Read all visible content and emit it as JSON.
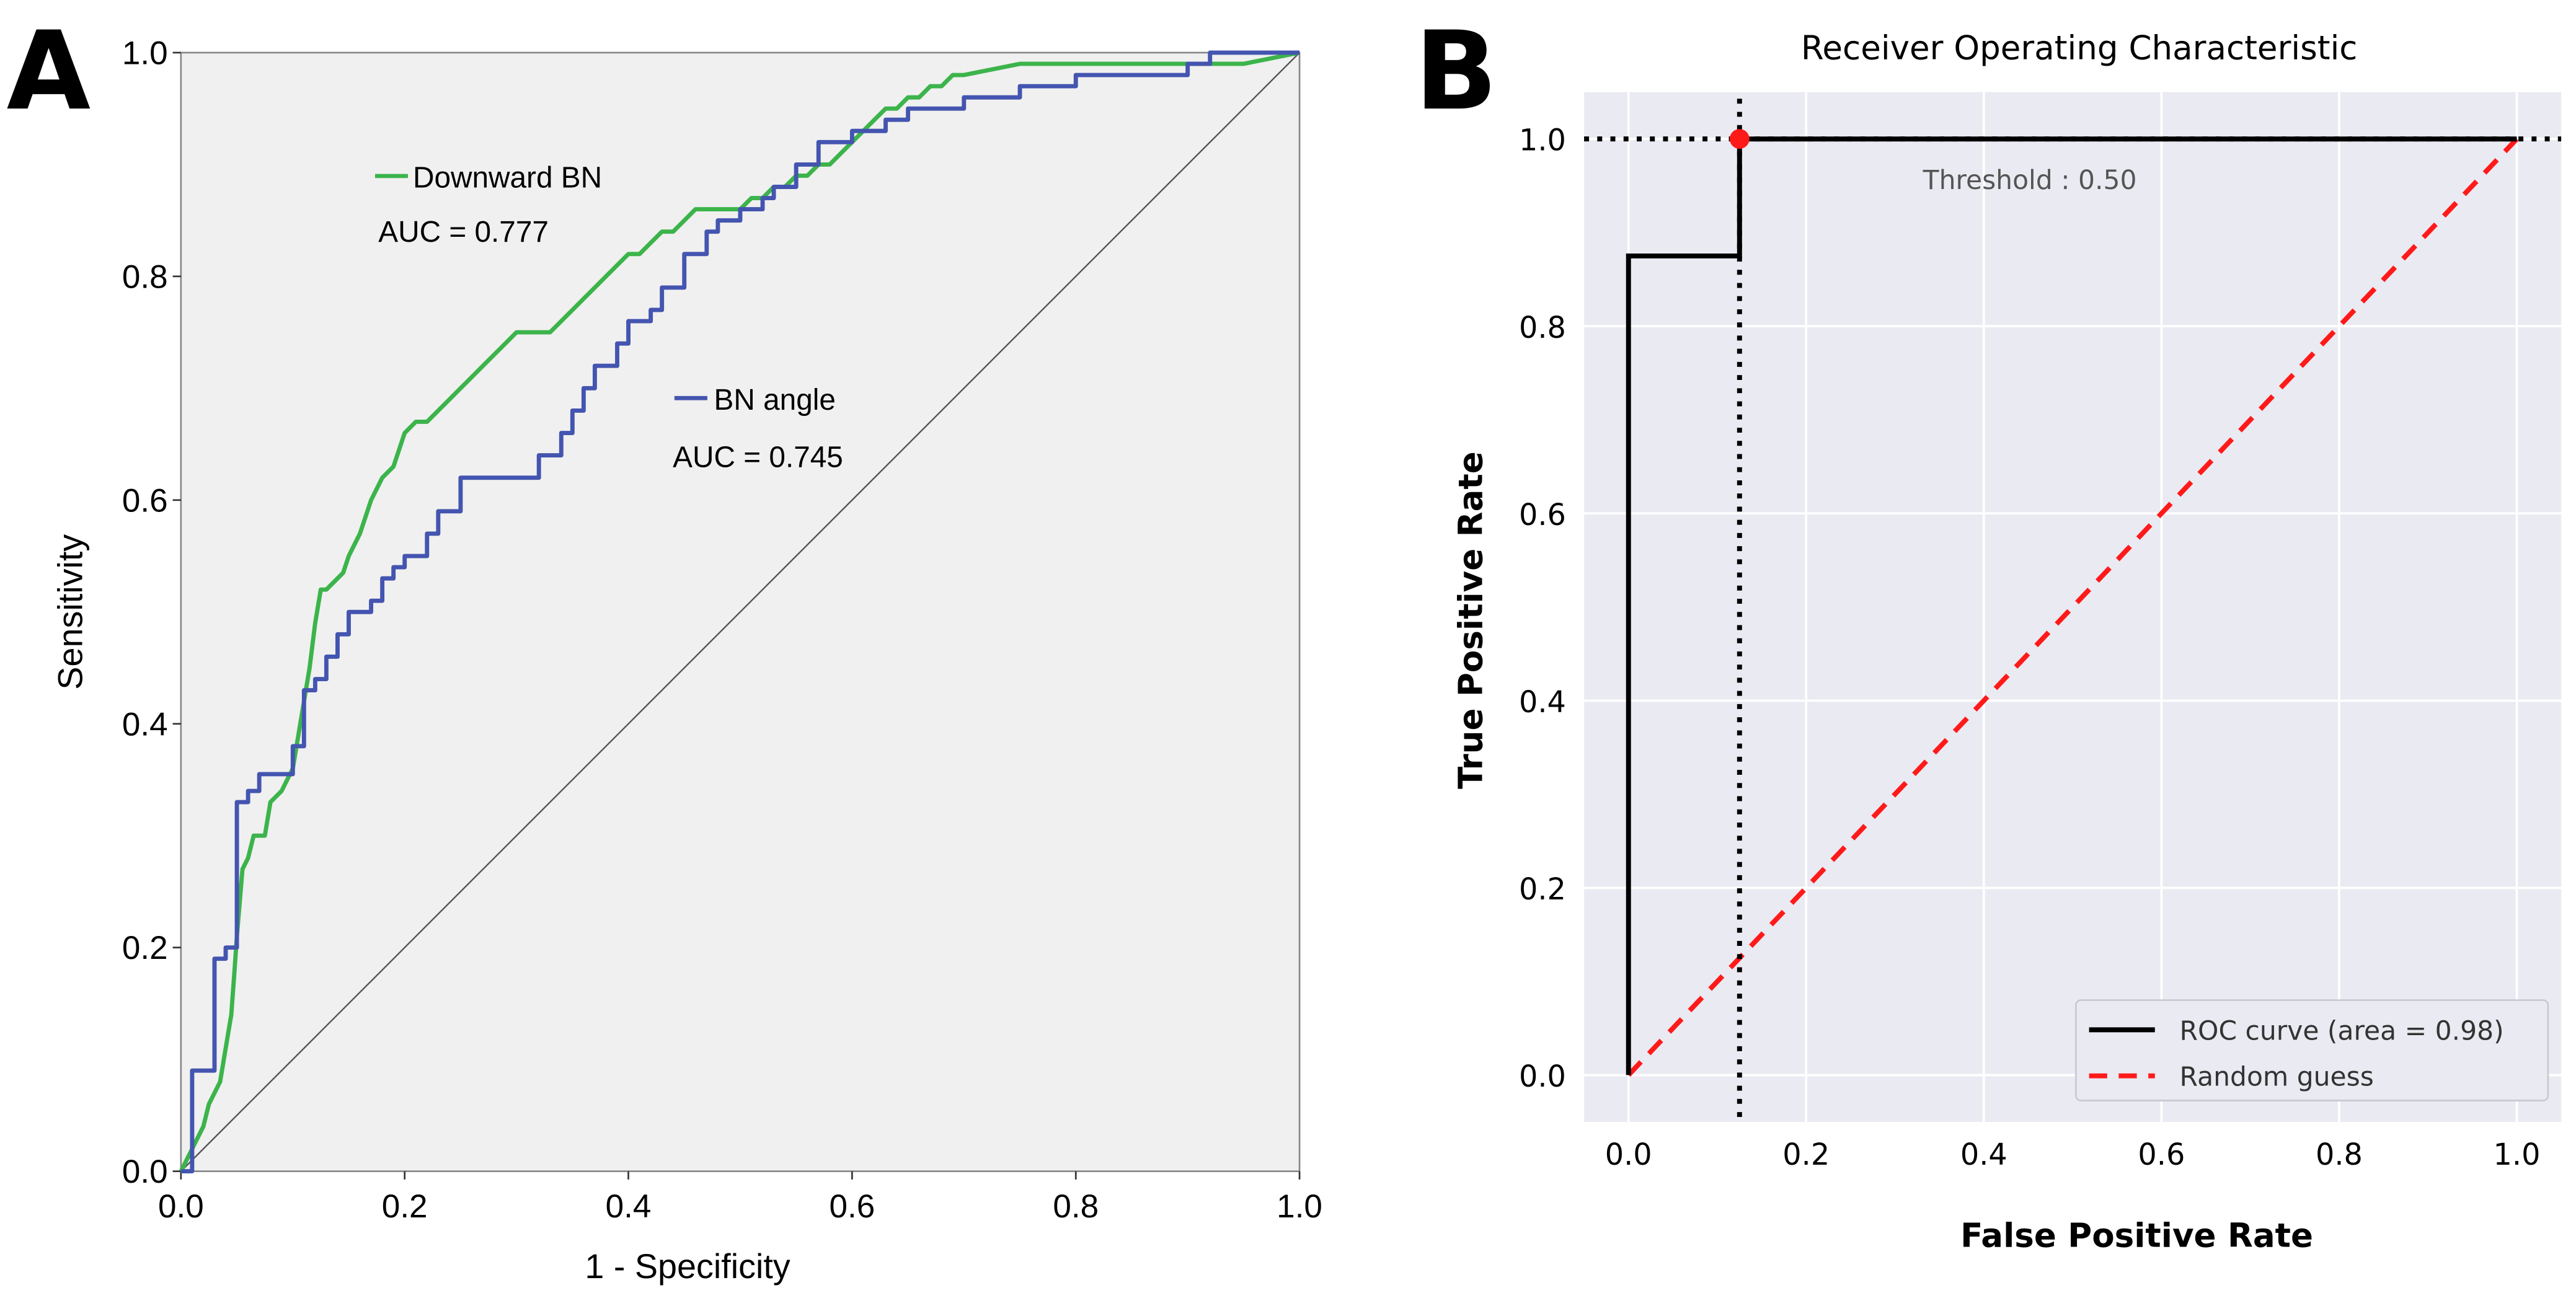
{
  "panels": {
    "a_label": "A",
    "b_label": "B"
  },
  "colors": {
    "downward": "#3cb44b",
    "bn_angle": "#4455b0",
    "roc": "#000000",
    "random": "#ff1a1a",
    "point": "#ff1a1a",
    "plot_bg_a": "#f0f0f0",
    "plot_bg_b": "#eaeaf2"
  },
  "chart_data": [
    {
      "type": "line",
      "panel": "A",
      "xlabel": "1 - Specificity",
      "ylabel": "Sensitivity",
      "xlim": [
        0,
        1
      ],
      "ylim": [
        0,
        1
      ],
      "ticks": [
        "0.0",
        "0.2",
        "0.4",
        "0.6",
        "0.8",
        "1.0"
      ],
      "grid": false,
      "reference_line": true,
      "series": [
        {
          "name": "Downward BN",
          "auc_text": "AUC = 0.777",
          "color": "#3cb44b",
          "step": false,
          "x": [
            0,
            0.01,
            0.02,
            0.025,
            0.035,
            0.04,
            0.045,
            0.048,
            0.05,
            0.055,
            0.06,
            0.065,
            0.075,
            0.08,
            0.09,
            0.1,
            0.105,
            0.11,
            0.115,
            0.12,
            0.125,
            0.13,
            0.14,
            0.145,
            0.15,
            0.16,
            0.17,
            0.18,
            0.19,
            0.2,
            0.21,
            0.22,
            0.23,
            0.24,
            0.25,
            0.26,
            0.27,
            0.28,
            0.29,
            0.3,
            0.31,
            0.32,
            0.33,
            0.34,
            0.35,
            0.36,
            0.37,
            0.38,
            0.39,
            0.4,
            0.41,
            0.42,
            0.43,
            0.44,
            0.45,
            0.46,
            0.47,
            0.48,
            0.49,
            0.5,
            0.51,
            0.52,
            0.53,
            0.54,
            0.55,
            0.56,
            0.57,
            0.58,
            0.59,
            0.6,
            0.61,
            0.62,
            0.63,
            0.64,
            0.65,
            0.66,
            0.67,
            0.68,
            0.69,
            0.7,
            0.75,
            0.8,
            0.85,
            0.9,
            0.95,
            1.0
          ],
          "y": [
            0,
            0.02,
            0.04,
            0.06,
            0.08,
            0.11,
            0.14,
            0.18,
            0.21,
            0.27,
            0.28,
            0.3,
            0.3,
            0.33,
            0.34,
            0.36,
            0.39,
            0.42,
            0.45,
            0.49,
            0.52,
            0.52,
            0.53,
            0.535,
            0.55,
            0.57,
            0.6,
            0.62,
            0.63,
            0.66,
            0.67,
            0.67,
            0.68,
            0.69,
            0.7,
            0.71,
            0.72,
            0.73,
            0.74,
            0.75,
            0.75,
            0.75,
            0.75,
            0.76,
            0.77,
            0.78,
            0.79,
            0.8,
            0.81,
            0.82,
            0.82,
            0.83,
            0.84,
            0.84,
            0.85,
            0.86,
            0.86,
            0.86,
            0.86,
            0.86,
            0.87,
            0.87,
            0.88,
            0.88,
            0.89,
            0.89,
            0.9,
            0.9,
            0.91,
            0.92,
            0.93,
            0.94,
            0.95,
            0.95,
            0.96,
            0.96,
            0.97,
            0.97,
            0.98,
            0.98,
            0.99,
            0.99,
            0.99,
            0.99,
            0.99,
            1.0
          ]
        },
        {
          "name": "BN angle",
          "auc_text": "AUC = 0.745",
          "color": "#4455b0",
          "step": true,
          "x": [
            0,
            0.01,
            0.01,
            0.03,
            0.03,
            0.04,
            0.04,
            0.05,
            0.05,
            0.06,
            0.06,
            0.07,
            0.07,
            0.08,
            0.08,
            0.1,
            0.1,
            0.11,
            0.11,
            0.12,
            0.12,
            0.13,
            0.13,
            0.14,
            0.14,
            0.15,
            0.15,
            0.17,
            0.17,
            0.18,
            0.18,
            0.19,
            0.19,
            0.2,
            0.2,
            0.22,
            0.22,
            0.23,
            0.23,
            0.25,
            0.25,
            0.28,
            0.28,
            0.32,
            0.32,
            0.34,
            0.34,
            0.35,
            0.35,
            0.36,
            0.36,
            0.37,
            0.37,
            0.39,
            0.39,
            0.4,
            0.4,
            0.42,
            0.42,
            0.43,
            0.43,
            0.45,
            0.45,
            0.47,
            0.47,
            0.48,
            0.48,
            0.5,
            0.5,
            0.52,
            0.52,
            0.53,
            0.53,
            0.55,
            0.55,
            0.57,
            0.57,
            0.6,
            0.6,
            0.63,
            0.63,
            0.65,
            0.65,
            0.7,
            0.7,
            0.75,
            0.75,
            0.8,
            0.8,
            0.9,
            0.9,
            0.92,
            0.92,
            1.0
          ],
          "y": [
            0,
            0,
            0.09,
            0.09,
            0.19,
            0.19,
            0.2,
            0.2,
            0.33,
            0.33,
            0.34,
            0.34,
            0.355,
            0.355,
            0.355,
            0.355,
            0.38,
            0.38,
            0.43,
            0.43,
            0.44,
            0.44,
            0.46,
            0.46,
            0.48,
            0.48,
            0.5,
            0.5,
            0.51,
            0.51,
            0.53,
            0.53,
            0.54,
            0.54,
            0.55,
            0.55,
            0.57,
            0.57,
            0.59,
            0.59,
            0.62,
            0.62,
            0.62,
            0.62,
            0.64,
            0.64,
            0.66,
            0.66,
            0.68,
            0.68,
            0.7,
            0.7,
            0.72,
            0.72,
            0.74,
            0.74,
            0.76,
            0.76,
            0.77,
            0.77,
            0.79,
            0.79,
            0.82,
            0.82,
            0.84,
            0.84,
            0.85,
            0.85,
            0.86,
            0.86,
            0.87,
            0.87,
            0.88,
            0.88,
            0.9,
            0.9,
            0.92,
            0.92,
            0.93,
            0.93,
            0.94,
            0.94,
            0.95,
            0.95,
            0.96,
            0.96,
            0.97,
            0.97,
            0.98,
            0.98,
            0.99,
            0.99,
            1.0,
            1.0
          ]
        }
      ]
    },
    {
      "type": "line",
      "panel": "B",
      "title": "Receiver Operating Characteristic",
      "xlabel": "False Positive Rate",
      "ylabel": "True Positive  Rate",
      "xlim": [
        -0.05,
        1.05
      ],
      "ylim": [
        -0.05,
        1.05
      ],
      "ticks": [
        "0.0",
        "0.2",
        "0.4",
        "0.6",
        "0.8",
        "1.0"
      ],
      "grid": true,
      "legend_position": "bottom-right",
      "threshold_text": "Threshold : 0.50",
      "threshold_point": {
        "x": 0.125,
        "y": 1.0
      },
      "series": [
        {
          "name": "ROC curve (area = 0.98)",
          "color": "#000000",
          "dash": "solid",
          "x": [
            0,
            0,
            0.125,
            0.125,
            1.0
          ],
          "y": [
            0,
            0.875,
            0.875,
            1.0,
            1.0
          ]
        },
        {
          "name": "Random guess",
          "color": "#ff1a1a",
          "dash": "dashed",
          "x": [
            0,
            1
          ],
          "y": [
            0,
            1
          ]
        }
      ]
    }
  ]
}
